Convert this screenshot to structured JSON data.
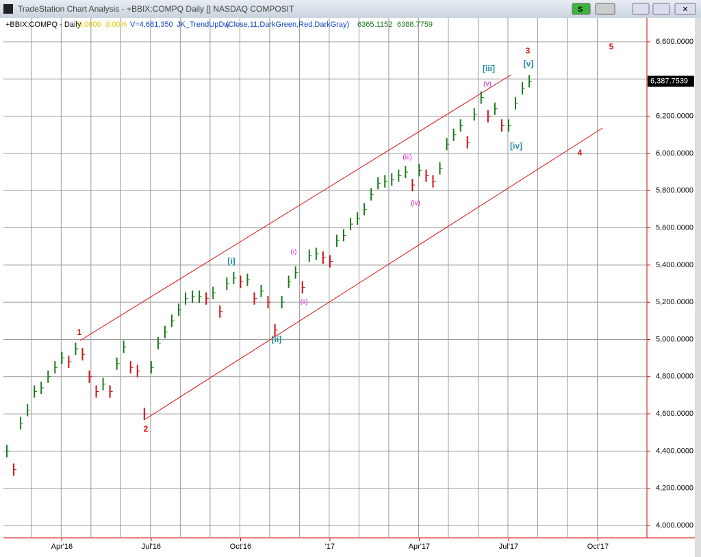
{
  "window": {
    "title": "TradeStation Chart Analysis - +BBIX:COMPQ Daily [] NASDAQ COMPOSIT",
    "button": "S"
  },
  "info": {
    "symbol": "+BBIX:COMPQ - Daily",
    "change": "0.0000",
    "change_pct": "0.00%",
    "volume": "V=4,681,350",
    "indicator": "JK_TrendUpDw",
    "indicator_params": "(Close,11,DarkGreen,Red,DarkGray)",
    "value1": "6365.1152",
    "value2": "6388.7759"
  },
  "chart_data": {
    "type": "bar",
    "categories": [
      null,
      null,
      null,
      null,
      null,
      null,
      null,
      null,
      "Apr'16",
      null,
      null,
      null,
      null,
      null,
      null,
      null,
      null,
      null,
      null,
      null,
      null,
      "Jul'16",
      null,
      null,
      null,
      null,
      null,
      null,
      null,
      null,
      null,
      null,
      null,
      null,
      "Oct'16",
      null,
      null,
      null,
      null,
      null,
      null,
      null,
      null,
      null,
      null,
      null,
      null,
      "'17",
      null,
      null,
      null,
      null,
      null,
      null,
      null,
      null,
      null,
      null,
      null,
      null,
      "Apr'17",
      null,
      null,
      null,
      null,
      null,
      null,
      null,
      null,
      null,
      null,
      null,
      null,
      "Jul'17",
      null,
      null,
      null,
      null,
      null,
      null,
      null,
      null,
      null,
      null,
      null,
      null,
      "Oct'17",
      null,
      null,
      null,
      null,
      null,
      null,
      null
    ],
    "values": [
      4400,
      4300,
      4550,
      4620,
      4720,
      4740,
      4800,
      4850,
      4900,
      4880,
      4950,
      4920,
      4800,
      4720,
      4760,
      4720,
      4870,
      4960,
      4850,
      4830,
      4600,
      4850,
      4980,
      5040,
      5100,
      5160,
      5220,
      5230,
      5230,
      5220,
      5250,
      5150,
      5300,
      5330,
      5310,
      5320,
      5220,
      5260,
      5200,
      5050,
      5200,
      5310,
      5360,
      5280,
      5450,
      5460,
      5440,
      5420,
      5530,
      5560,
      5620,
      5650,
      5700,
      5780,
      5840,
      5850,
      5860,
      5880,
      5900,
      5830,
      5910,
      5880,
      5850,
      5920,
      6050,
      6100,
      6150,
      6060,
      6210,
      6300,
      6200,
      6240,
      6150,
      6150,
      6270,
      6350,
      6388,
      null,
      null,
      null,
      null,
      null,
      null,
      null,
      null,
      null,
      null,
      null,
      null,
      null,
      null,
      null,
      null,
      null
    ],
    "up_color": "#1a7a1a",
    "down_color": "#cc1111",
    "ylim": [
      3940,
      6710
    ],
    "yticks": [
      {
        "value": 4000,
        "label": "4,000.0000"
      },
      {
        "value": 4200,
        "label": "4,200.0000"
      },
      {
        "value": 4400,
        "label": "4,400.0000"
      },
      {
        "value": 4600,
        "label": "4,600.0000"
      },
      {
        "value": 4800,
        "label": "4,800.0000"
      },
      {
        "value": 5000,
        "label": "5,000.0000"
      },
      {
        "value": 5200,
        "label": "5,200.0000"
      },
      {
        "value": 5400,
        "label": "5,400.0000"
      },
      {
        "value": 5600,
        "label": "5,600.0000"
      },
      {
        "value": 5800,
        "label": "5,800.0000"
      },
      {
        "value": 6000,
        "label": "6,000.0000"
      },
      {
        "value": 6200,
        "label": "6,200.0000"
      },
      {
        "value": 6400,
        "label": "6,400.0000"
      },
      {
        "value": 6600,
        "label": "6,600.0000"
      }
    ],
    "last_price": {
      "value": 6387.7539,
      "label": "6,387.7539"
    },
    "grid": true,
    "annotations": [
      "1",
      "2",
      "3",
      "4",
      "5",
      "[i]",
      "[ii]",
      "[iii]",
      "[iv]",
      "[v]",
      "(i)",
      "(ii)",
      "(iii)",
      "(iv)",
      "(v)"
    ]
  }
}
